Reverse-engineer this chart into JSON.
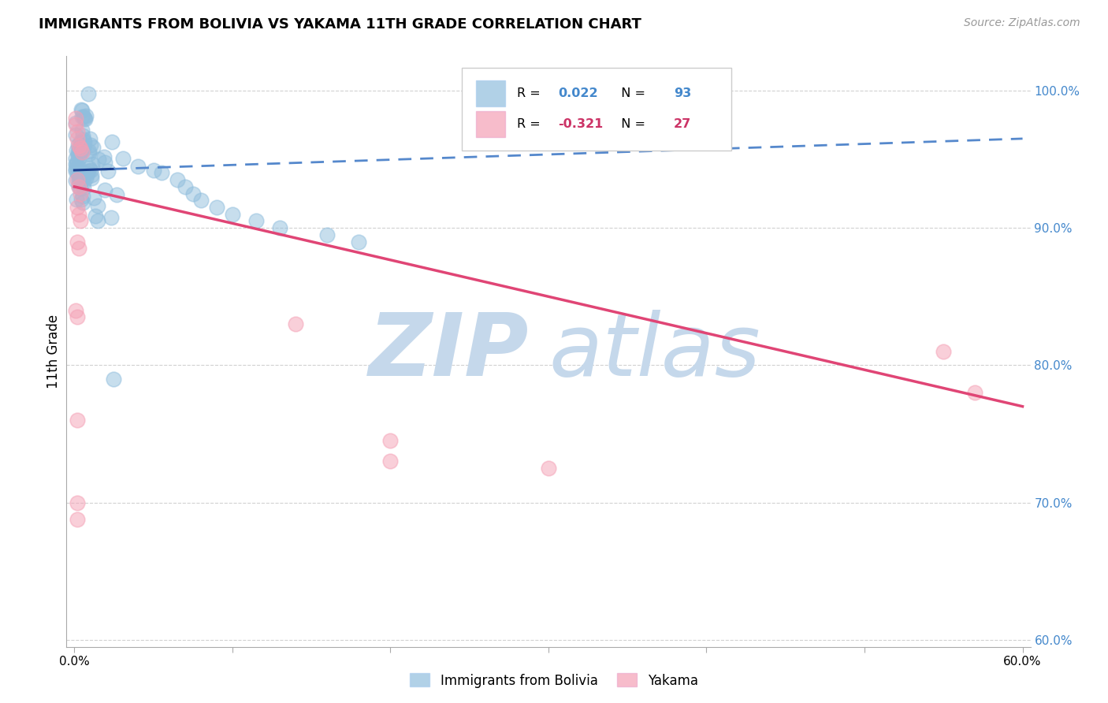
{
  "title": "IMMIGRANTS FROM BOLIVIA VS YAKAMA 11TH GRADE CORRELATION CHART",
  "source": "Source: ZipAtlas.com",
  "xlabel_legend_blue": "Immigrants from Bolivia",
  "xlabel_legend_pink": "Yakama",
  "ylabel": "11th Grade",
  "r_blue": "0.022",
  "n_blue": "93",
  "r_pink": "-0.321",
  "n_pink": "27",
  "xlim": [
    -0.005,
    0.605
  ],
  "ylim": [
    0.595,
    1.025
  ],
  "yticks": [
    0.6,
    0.7,
    0.8,
    0.9,
    1.0
  ],
  "xticks": [
    0.0,
    0.1,
    0.2,
    0.3,
    0.4,
    0.5,
    0.6
  ],
  "xtick_labels": [
    "0.0%",
    "",
    "",
    "",
    "",
    "",
    "60.0%"
  ],
  "ytick_labels": [
    "60.0%",
    "70.0%",
    "80.0%",
    "90.0%",
    "100.0%"
  ],
  "blue_color": "#90bedd",
  "pink_color": "#f5a0b5",
  "trend_blue_solid_color": "#1a3f8f",
  "trend_blue_dash_color": "#5588cc",
  "trend_pink_color": "#e04575",
  "watermark_zip": "ZIP",
  "watermark_atlas": "atlas",
  "watermark_color": "#c5d8eb",
  "bg_color": "#ffffff",
  "legend_border_color": "#cccccc",
  "blue_label_color": "#4488cc",
  "pink_label_color": "#cc3366",
  "axis_label_color": "#4488cc",
  "grid_color": "#cccccc",
  "title_fontsize": 13,
  "source_fontsize": 10,
  "tick_fontsize": 11
}
